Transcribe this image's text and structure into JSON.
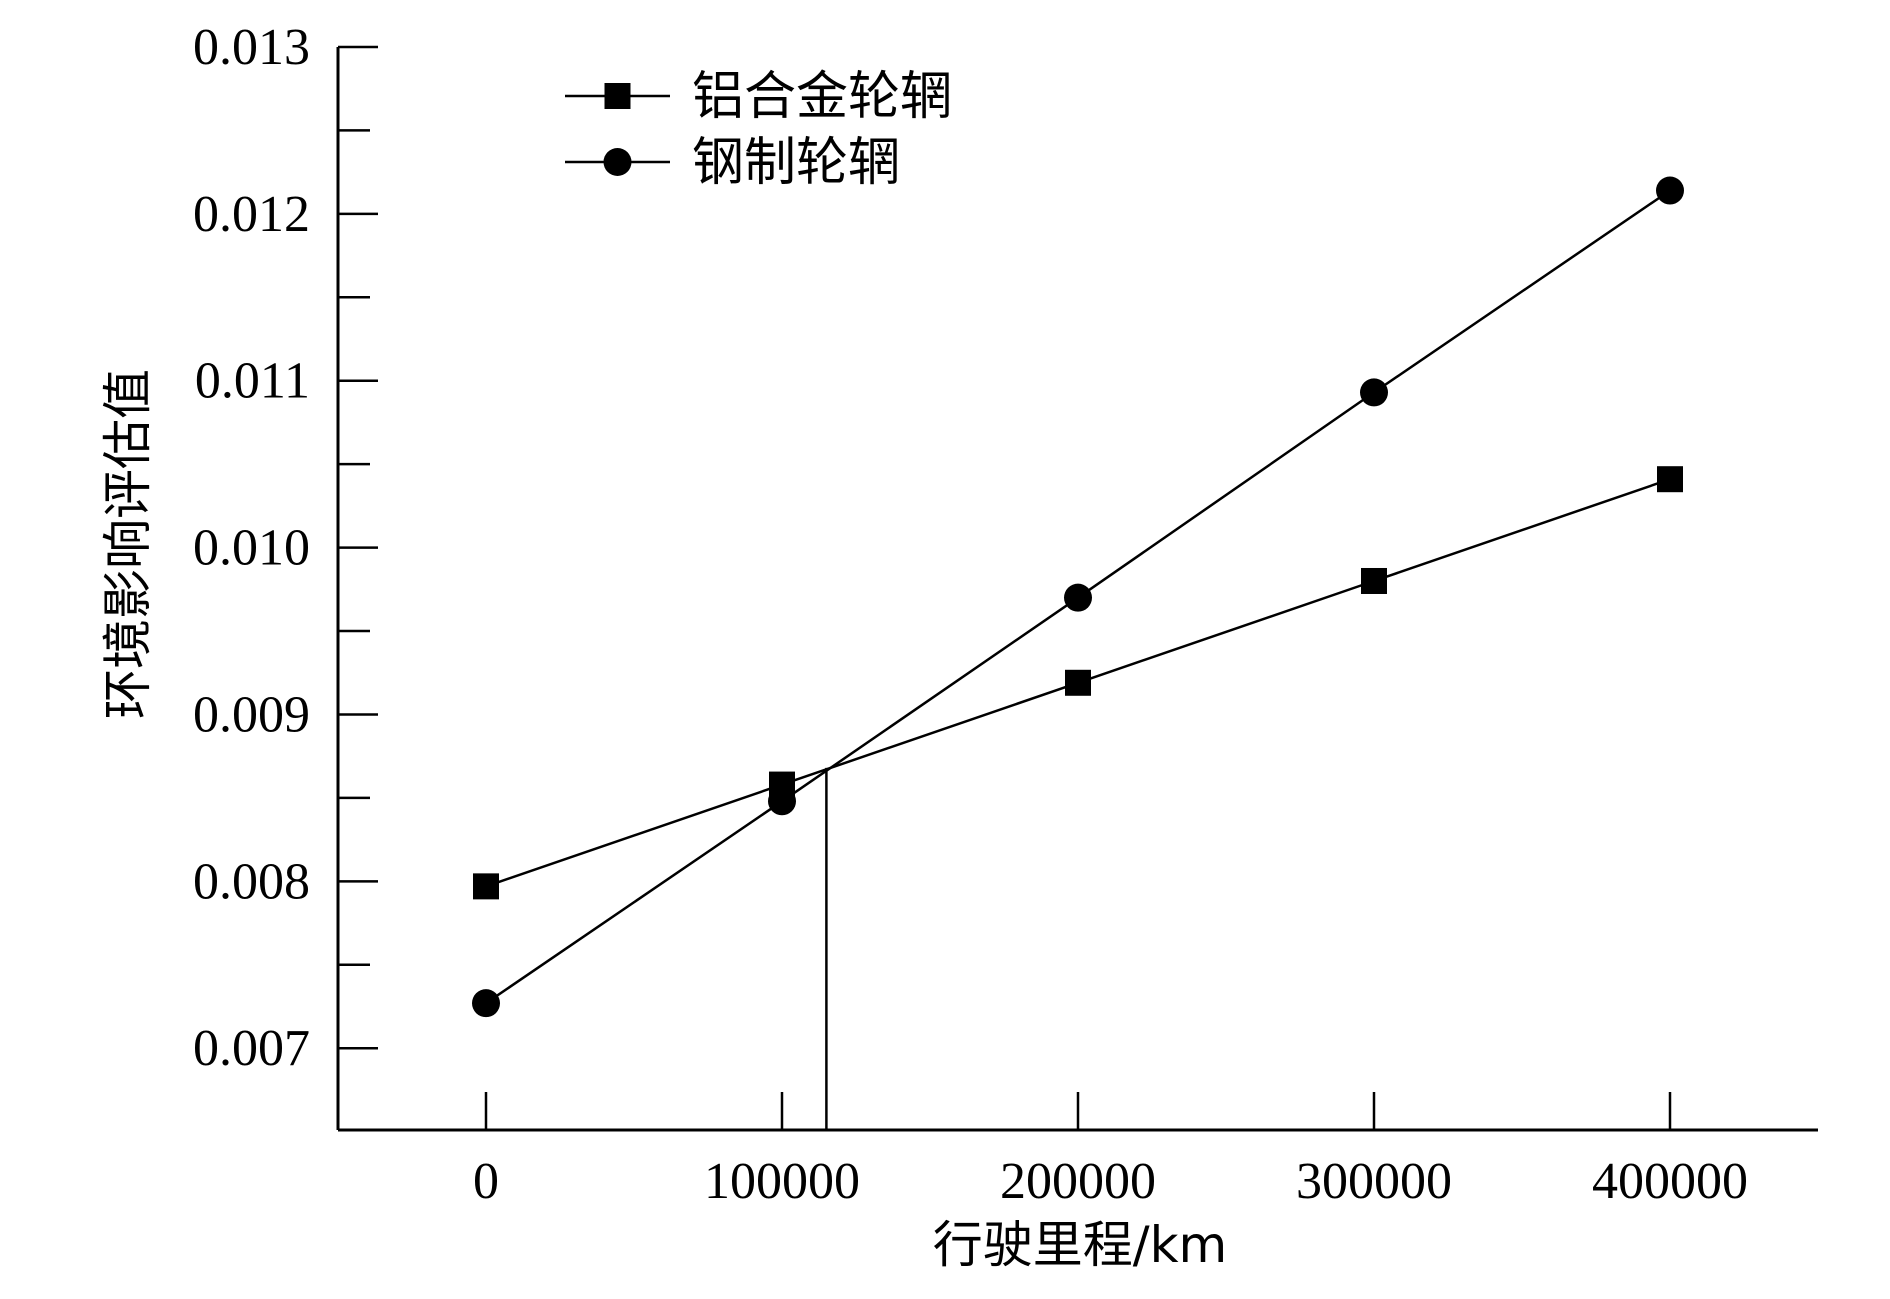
{
  "chart_data": {
    "type": "line",
    "title": "",
    "xlabel": "行驶里程/km",
    "ylabel": "环境影响评估值",
    "x": [
      0,
      100000,
      200000,
      300000,
      400000
    ],
    "x_tick_labels": [
      "0",
      "100000",
      "200000",
      "300000",
      "400000"
    ],
    "y_tick_labels": [
      "0.007",
      "0.008",
      "0.009",
      "0.010",
      "0.011",
      "0.012",
      "0.013"
    ],
    "xlim": [
      -50000,
      450000
    ],
    "ylim": [
      0.00651,
      0.013
    ],
    "y_ticks": [
      0.007,
      0.008,
      0.009,
      0.01,
      0.011,
      0.012,
      0.013
    ],
    "y_minor_step": 0.0005,
    "series": [
      {
        "name": "铝合金轮辋",
        "marker": "square",
        "values": [
          0.00797,
          0.00858,
          0.00919,
          0.0098,
          0.01041
        ]
      },
      {
        "name": "钢制轮辋",
        "marker": "circle",
        "values": [
          0.00727,
          0.00848,
          0.0097,
          0.01093,
          0.01214
        ]
      }
    ],
    "annotations": [
      {
        "type": "vertical-line",
        "x": 115000,
        "y": 0.00868,
        "description": "crossover point"
      }
    ],
    "legend_position": "top-left",
    "grid": false,
    "colors": {
      "line": "#000000",
      "background": "#ffffff"
    }
  }
}
